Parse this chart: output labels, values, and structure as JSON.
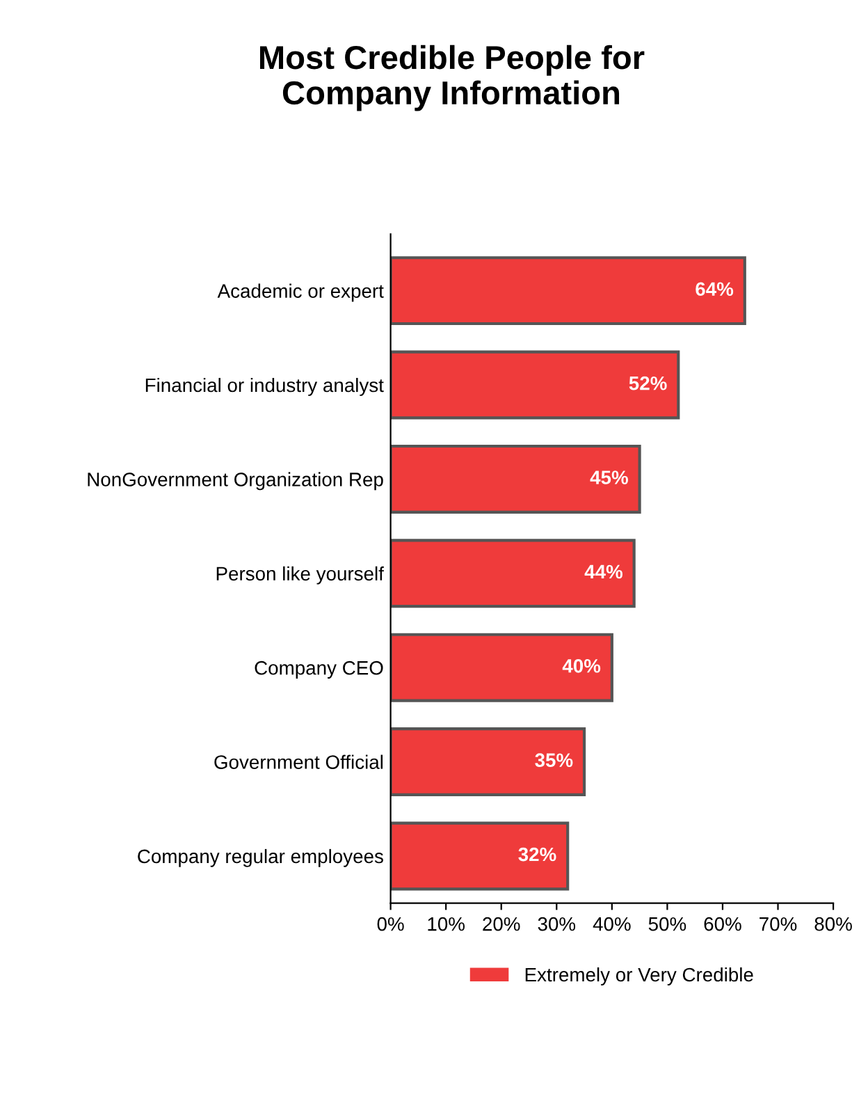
{
  "chart_data": {
    "type": "bar",
    "orientation": "horizontal",
    "title": "Most Credible People for\nCompany Information",
    "categories": [
      "Academic or expert",
      "Financial or industry analyst",
      "NonGovernment Organization Rep",
      "Person like yourself",
      "Company CEO",
      "Government Official",
      "Company regular employees"
    ],
    "series": [
      {
        "name": "Extremely or Very Credible",
        "color": "#ef3b3b",
        "values": [
          64,
          52,
          45,
          44,
          40,
          35,
          32
        ],
        "value_labels": [
          "64%",
          "52%",
          "45%",
          "44%",
          "40%",
          "35%",
          "32%"
        ]
      }
    ],
    "xlim": [
      0,
      80
    ],
    "xticks": [
      {
        "value": 0,
        "label": "0%"
      },
      {
        "value": 10,
        "label": "10%"
      },
      {
        "value": 20,
        "label": "20%"
      },
      {
        "value": 30,
        "label": "30%"
      },
      {
        "value": 40,
        "label": "40%"
      },
      {
        "value": 50,
        "label": "50%"
      },
      {
        "value": 60,
        "label": "60%"
      },
      {
        "value": 70,
        "label": "70%"
      },
      {
        "value": 80,
        "label": "80%"
      }
    ],
    "grid": false,
    "legend": "bottom"
  }
}
